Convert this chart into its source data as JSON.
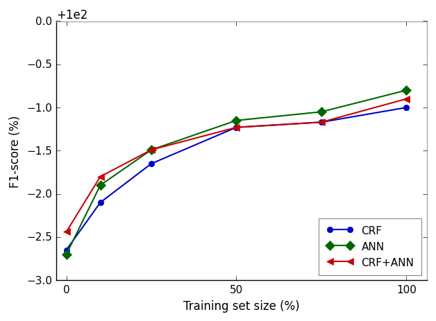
{
  "x": [
    0,
    10,
    25,
    50,
    75,
    100
  ],
  "CRF": [
    97.35,
    97.9,
    98.35,
    98.77,
    98.83,
    99.0
  ],
  "ANN": [
    97.3,
    98.1,
    98.51,
    98.85,
    98.95,
    99.2
  ],
  "CRF_ANN": [
    97.56,
    98.2,
    98.51,
    98.77,
    98.83,
    99.1
  ],
  "crf_color": "#0000cc",
  "ann_color": "#006600",
  "crfann_color": "#cc0000",
  "xlabel": "Training set size (%)",
  "ylabel": "F1-score (%)",
  "ylim": [
    97.0,
    100.0
  ],
  "xlim": [
    -3,
    106
  ],
  "yticks": [
    97.0,
    97.5,
    98.0,
    98.5,
    99.0,
    99.5,
    100.0
  ],
  "xticks": [
    0,
    50,
    100
  ],
  "legend_labels": [
    "CRF",
    "ANN",
    "CRF+ANN"
  ],
  "background_color": "#ffffff"
}
